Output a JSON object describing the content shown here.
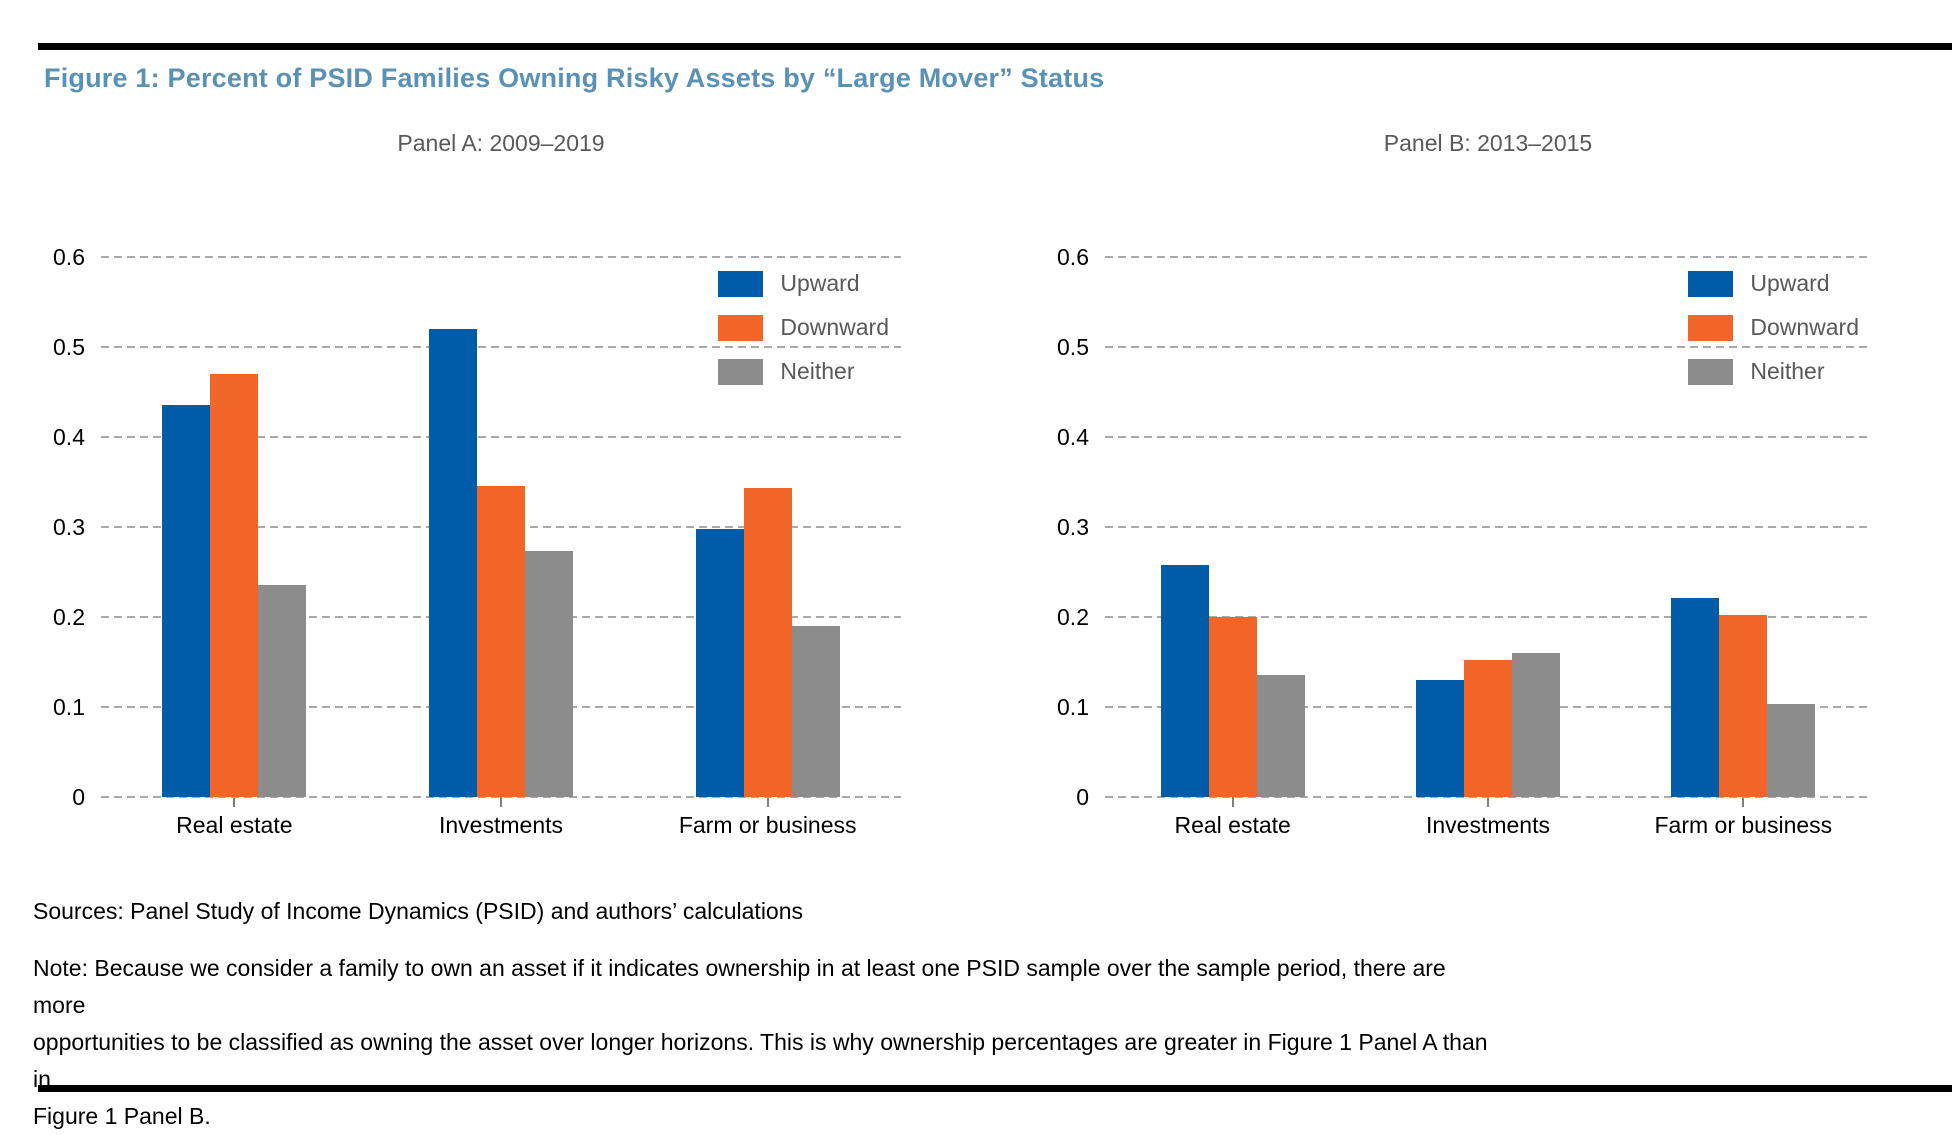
{
  "figure": {
    "title": "Figure 1: Percent of PSID Families Owning Risky Assets by “Large Mover” Status",
    "title_color": "#5A92B5"
  },
  "chart_data": {
    "type": "bar",
    "grid": "horizontal dashed",
    "gridline_color": "#A9A9A9",
    "legend_position": "top-right",
    "ylim": [
      0,
      0.6
    ],
    "yticks": [
      0.6,
      0.5,
      0.4,
      0.3,
      0.2,
      0.1,
      0
    ],
    "ytick_labels": [
      "0.6",
      "0.5",
      "0.4",
      "0.3",
      "0.2",
      "0.1",
      "0"
    ],
    "panels": [
      {
        "id": "a",
        "title": "Panel A: 2009–2019",
        "categories": [
          "Real estate",
          "Investments",
          "Farm or business"
        ],
        "series": [
          {
            "name": "Upward",
            "color": "#005CA9",
            "values": [
              0.435,
              0.52,
              0.298
            ]
          },
          {
            "name": "Downward",
            "color": "#F26529",
            "values": [
              0.47,
              0.345,
              0.343
            ]
          },
          {
            "name": "Neither",
            "color": "#8C8C8C",
            "values": [
              0.235,
              0.273,
              0.19
            ]
          }
        ]
      },
      {
        "id": "b",
        "title": "Panel B: 2013–2015",
        "categories": [
          "Real estate",
          "Investments",
          "Farm or business"
        ],
        "series": [
          {
            "name": "Upward",
            "color": "#005CA9",
            "values": [
              0.258,
              0.13,
              0.221
            ]
          },
          {
            "name": "Downward",
            "color": "#F26529",
            "values": [
              0.2,
              0.152,
              0.202
            ]
          },
          {
            "name": "Neither",
            "color": "#8C8C8C",
            "values": [
              0.135,
              0.16,
              0.103
            ]
          }
        ]
      }
    ]
  },
  "footer": {
    "sources": "Sources: Panel Study of Income Dynamics (PSID) and authors’ calculations",
    "note_lines": [
      "Note: Because we consider a family to own an asset if it indicates ownership in at least one PSID sample over the sample period, there are more",
      "opportunities to be classified as owning the asset over longer horizons. This is why ownership percentages are greater in Figure 1 Panel A than in",
      "Figure 1 Panel B."
    ]
  }
}
